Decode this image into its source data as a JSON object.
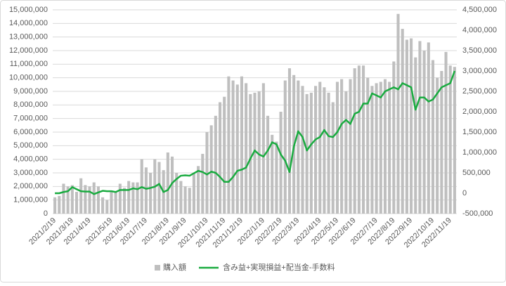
{
  "chart_data": {
    "type": "bar",
    "categories": [
      "2021/2/19",
      null,
      null,
      null,
      "2021/3/19",
      null,
      null,
      null,
      "2021/4/19",
      null,
      null,
      null,
      null,
      "2021/5/19",
      null,
      null,
      null,
      "2021/6/19",
      null,
      null,
      null,
      "2021/7/19",
      null,
      null,
      null,
      null,
      "2021/8/19",
      null,
      null,
      null,
      "2021/9/19",
      null,
      null,
      null,
      null,
      "2021/10/19",
      null,
      null,
      null,
      "2021/11/19",
      null,
      null,
      null,
      "2021/12/19",
      null,
      null,
      null,
      null,
      "2022/1/19",
      null,
      null,
      null,
      "2022/2/19",
      null,
      null,
      null,
      "2022/3/19",
      null,
      null,
      null,
      null,
      "2022/4/19",
      null,
      null,
      null,
      "2022/5/19",
      null,
      null,
      null,
      "2022/6/19",
      null,
      null,
      null,
      null,
      "2022/7/19",
      null,
      null,
      null,
      "2022/8/19",
      null,
      null,
      null,
      "2022/9/19",
      null,
      null,
      null,
      null,
      "2022/10/19",
      null,
      null,
      null,
      "2022/11/19",
      null
    ],
    "series": [
      {
        "name": "購入額",
        "type": "bar",
        "color": "#bfbfbf",
        "values": [
          1200000,
          1300000,
          2200000,
          2000000,
          2100000,
          1600000,
          2600000,
          2100000,
          2000000,
          2300000,
          2000000,
          1200000,
          1000000,
          1700000,
          1600000,
          2200000,
          1900000,
          2400000,
          2300000,
          2300000,
          4000000,
          3400000,
          3000000,
          4000000,
          3800000,
          3200000,
          4500000,
          4200000,
          3000000,
          2400000,
          2000000,
          1900000,
          3000000,
          3500000,
          4400000,
          6000000,
          6500000,
          7200000,
          8200000,
          8600000,
          10100000,
          9800000,
          9500000,
          10100000,
          9600000,
          8800000,
          8900000,
          9000000,
          9600000,
          7200000,
          5800000,
          5300000,
          7500000,
          9800000,
          10700000,
          10200000,
          9800000,
          9400000,
          8800000,
          8900000,
          9400000,
          9700000,
          9300000,
          8900000,
          8200000,
          9700000,
          9900000,
          9000000,
          9900000,
          10700000,
          10900000,
          10900000,
          10000000,
          9400000,
          9600000,
          9700000,
          9900000,
          9700000,
          11200000,
          14700000,
          13600000,
          12800000,
          12900000,
          11500000,
          12700000,
          12000000,
          12600000,
          11300000,
          10000000,
          10500000,
          11900000,
          10900000,
          10800000
        ]
      },
      {
        "name": "含み益+実現損益+配当金-手数料",
        "type": "line",
        "axis": "y2",
        "color": "#1aab40",
        "values": [
          0,
          0,
          30000,
          50000,
          150000,
          100000,
          50000,
          40000,
          40000,
          -20000,
          20000,
          60000,
          50000,
          50000,
          30000,
          80000,
          80000,
          80000,
          120000,
          100000,
          150000,
          110000,
          130000,
          160000,
          230000,
          30000,
          80000,
          250000,
          350000,
          430000,
          440000,
          430000,
          490000,
          550000,
          520000,
          460000,
          530000,
          500000,
          400000,
          280000,
          280000,
          400000,
          550000,
          580000,
          630000,
          850000,
          1050000,
          950000,
          900000,
          1050000,
          1250000,
          1200000,
          950000,
          800000,
          520000,
          1150000,
          1520000,
          1380000,
          1050000,
          1200000,
          1320000,
          1380000,
          1550000,
          1400000,
          1380000,
          1500000,
          1700000,
          1800000,
          1700000,
          1950000,
          2000000,
          2200000,
          2200000,
          2450000,
          2400000,
          2350000,
          2500000,
          2550000,
          2600000,
          2550000,
          2700000,
          2650000,
          2600000,
          2050000,
          2350000,
          2350000,
          2250000,
          2300000,
          2450000,
          2600000,
          2650000,
          2700000,
          3000000
        ]
      }
    ],
    "ylim": [
      0,
      15000000
    ],
    "yticks": [
      0,
      {
        "value": 1000000,
        "label": "1,000,000"
      },
      {
        "value": 2000000,
        "label": "2,000,000"
      },
      {
        "value": 3000000,
        "label": "3,000,000"
      },
      {
        "value": 4000000,
        "label": "4,000,000"
      },
      {
        "value": 5000000,
        "label": "5,000,000"
      },
      {
        "value": 6000000,
        "label": "6,000,000"
      },
      {
        "value": 7000000,
        "label": "7,000,000"
      },
      {
        "value": 8000000,
        "label": "8,000,000"
      },
      {
        "value": 9000000,
        "label": "9,000,000"
      },
      {
        "value": 10000000,
        "label": "10,000,000"
      },
      {
        "value": 11000000,
        "label": "11,000,000"
      },
      {
        "value": 12000000,
        "label": "12,000,000"
      },
      {
        "value": 13000000,
        "label": "13,000,000"
      },
      {
        "value": 14000000,
        "label": "14,000,000"
      },
      {
        "value": 15000000,
        "label": "15,000,000"
      }
    ],
    "y2lim": [
      -500000,
      4500000
    ],
    "y2ticks": [
      {
        "value": -500000,
        "label": "-500,000"
      },
      0,
      {
        "value": 500000,
        "label": "500,000"
      },
      {
        "value": 1000000,
        "label": "1,000,000"
      },
      {
        "value": 1500000,
        "label": "1,500,000"
      },
      {
        "value": 2000000,
        "label": "2,000,000"
      },
      {
        "value": 2500000,
        "label": "2,500,000"
      },
      {
        "value": 3000000,
        "label": "3,000,000"
      },
      {
        "value": 3500000,
        "label": "3,500,000"
      },
      {
        "value": 4000000,
        "label": "4,000,000"
      },
      {
        "value": 4500000,
        "label": "4,500,000"
      }
    ],
    "grid": true,
    "legend": "bottom"
  }
}
